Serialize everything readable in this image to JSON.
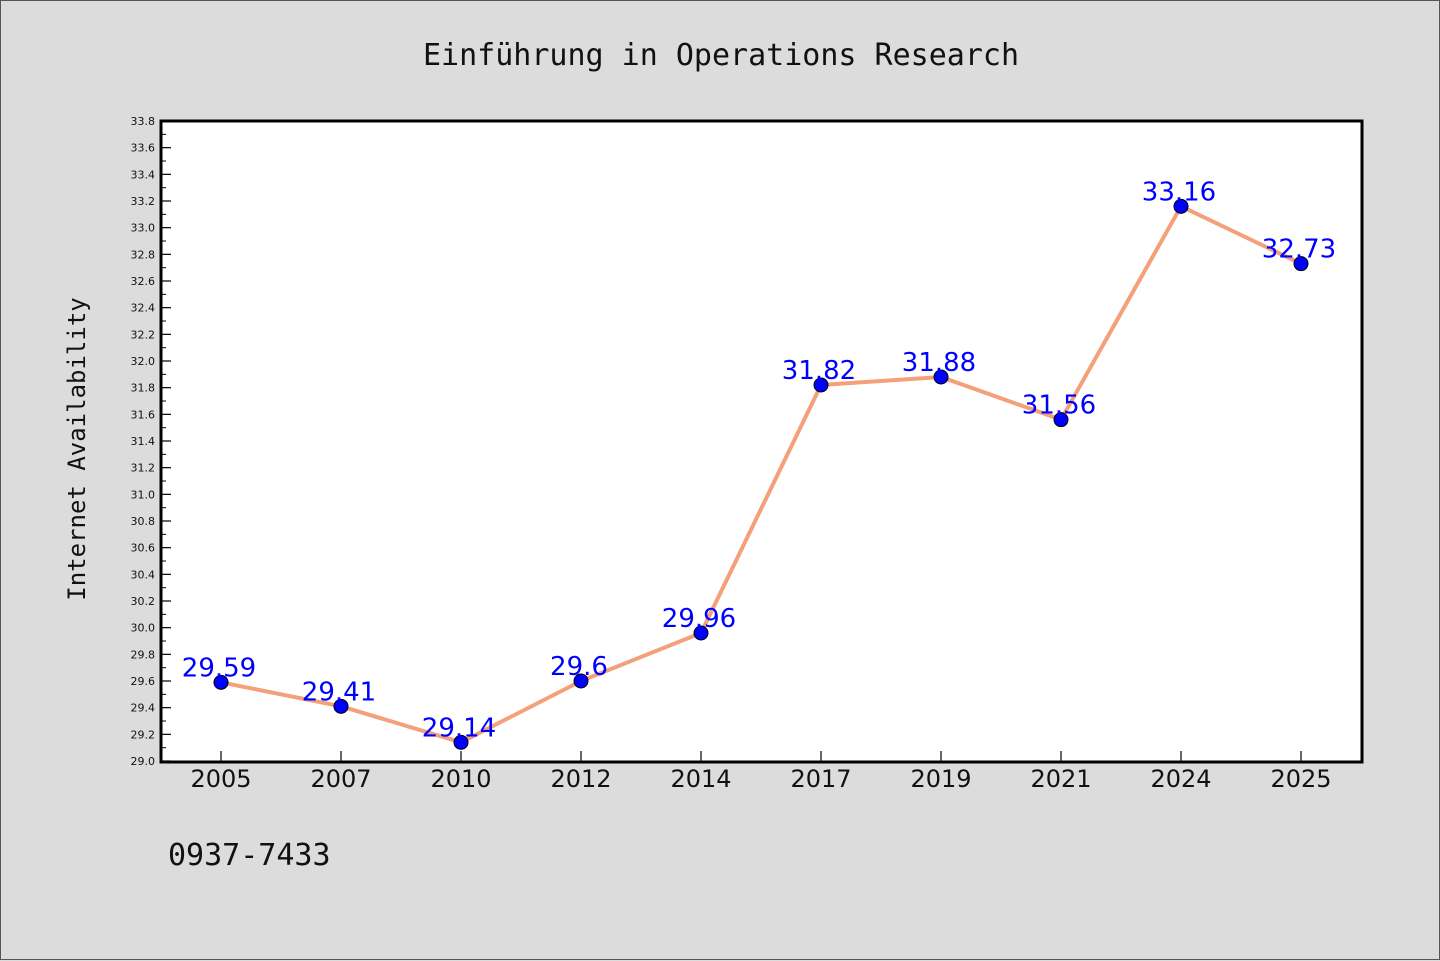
{
  "chart_data": {
    "type": "line",
    "title": "Einführung in Operations Research",
    "xlabel": "",
    "ylabel": "Internet Availability",
    "categories": [
      "2005",
      "2007",
      "2010",
      "2012",
      "2014",
      "2017",
      "2019",
      "2021",
      "2024",
      "2025"
    ],
    "series": [
      {
        "values": [
          29.59,
          29.41,
          29.14,
          29.6,
          29.96,
          31.82,
          31.88,
          31.56,
          33.16,
          32.73
        ],
        "labels": [
          "29.59",
          "29.41",
          "29.14",
          "29.6",
          "29.96",
          "31.82",
          "31.88",
          "31.56",
          "33.16",
          "32.73"
        ]
      }
    ],
    "ylim": [
      29.0,
      33.8
    ],
    "yticks": [
      "29.0",
      "29.2",
      "29.4",
      "29.6",
      "29.8",
      "30.0",
      "30.2",
      "30.4",
      "30.6",
      "30.8",
      "31.0",
      "31.2",
      "31.4",
      "31.6",
      "31.8",
      "32.0",
      "32.2",
      "32.4",
      "32.6",
      "32.8",
      "33.0",
      "33.2",
      "33.4",
      "33.6",
      "33.8"
    ],
    "grid": false,
    "line_color": "#f4a07a",
    "marker_color": "#0000ff",
    "label_color": "#0000ff",
    "background": "#dcdcdc",
    "plot_background": "#ffffff"
  },
  "footer": {
    "text": "0937-7433"
  }
}
